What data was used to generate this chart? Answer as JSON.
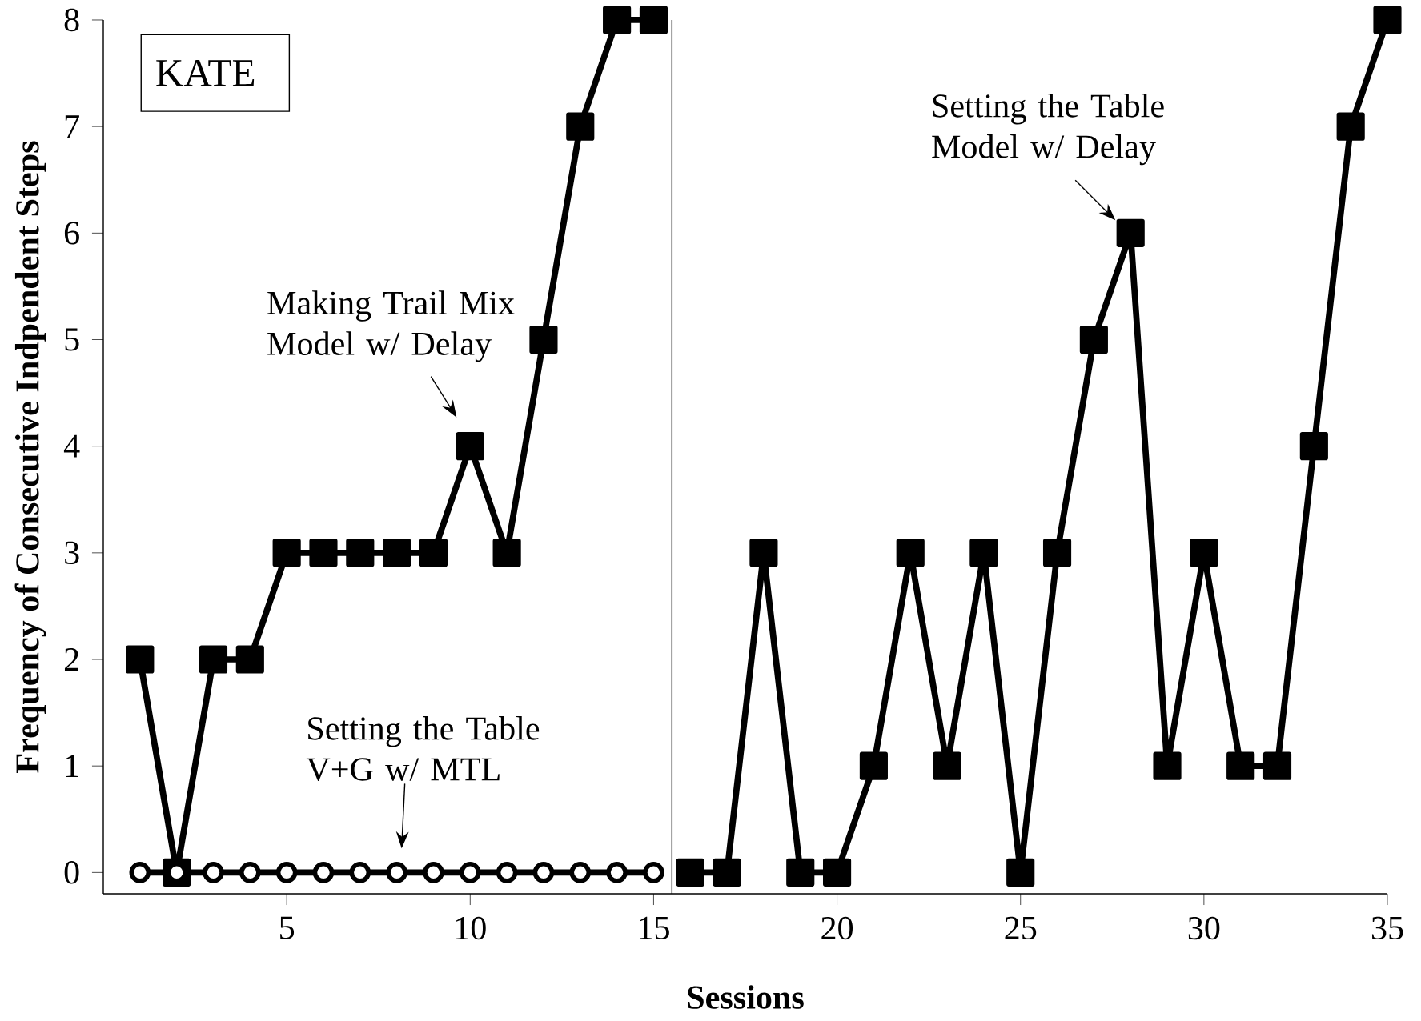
{
  "chart_data": {
    "type": "line",
    "xlabel": "Sessions",
    "ylabel": "Frequency of Consecutive Indpendent Steps",
    "xlim": [
      0,
      35
    ],
    "xticks": [
      5,
      10,
      15,
      20,
      25,
      30,
      35
    ],
    "ylim": [
      -0.2,
      8
    ],
    "yticks": [
      0,
      1,
      2,
      3,
      4,
      5,
      6,
      7,
      8
    ],
    "grid": false,
    "line_style": "solid",
    "series": [
      {
        "color": "#000000",
        "marker": "square",
        "x": [
          1,
          2,
          3,
          4,
          5,
          6,
          7,
          8,
          9,
          10,
          11,
          12,
          13,
          14,
          15
        ],
        "values": [
          2,
          0,
          2,
          2,
          3,
          3,
          3,
          3,
          3,
          4,
          3,
          5,
          7,
          8,
          8
        ]
      },
      {
        "color": "#000000",
        "marker": "square",
        "x": [
          16,
          17,
          18,
          19,
          20,
          21,
          22,
          23,
          24,
          25,
          26,
          27,
          28,
          29,
          30,
          31,
          32,
          33,
          34,
          35
        ],
        "values": [
          0,
          0,
          3,
          0,
          0,
          1,
          3,
          1,
          3,
          0,
          3,
          5,
          6,
          1,
          3,
          1,
          1,
          4,
          7,
          8
        ]
      },
      {
        "color": "#000000",
        "marker": "circle",
        "x": [
          1,
          2,
          3,
          4,
          5,
          6,
          7,
          8,
          9,
          10,
          11,
          12,
          13,
          14,
          15
        ],
        "values": [
          0,
          0,
          0,
          0,
          0,
          0,
          0,
          0,
          0,
          0,
          0,
          0,
          0,
          0,
          0
        ]
      }
    ],
    "ref_lines": [
      {
        "axis": "x",
        "value": 15.5,
        "color": "#000000"
      }
    ],
    "annotations": [
      "KATE",
      {
        "text": "Making Trail Mix Model w/ Delay",
        "x": 10,
        "y": 4
      },
      {
        "text": "Setting the Table Model w/ Delay",
        "x": 28,
        "y": 6
      },
      {
        "text": "Setting the Table V+G w/ MTL",
        "x": 8,
        "y": 0
      }
    ]
  }
}
